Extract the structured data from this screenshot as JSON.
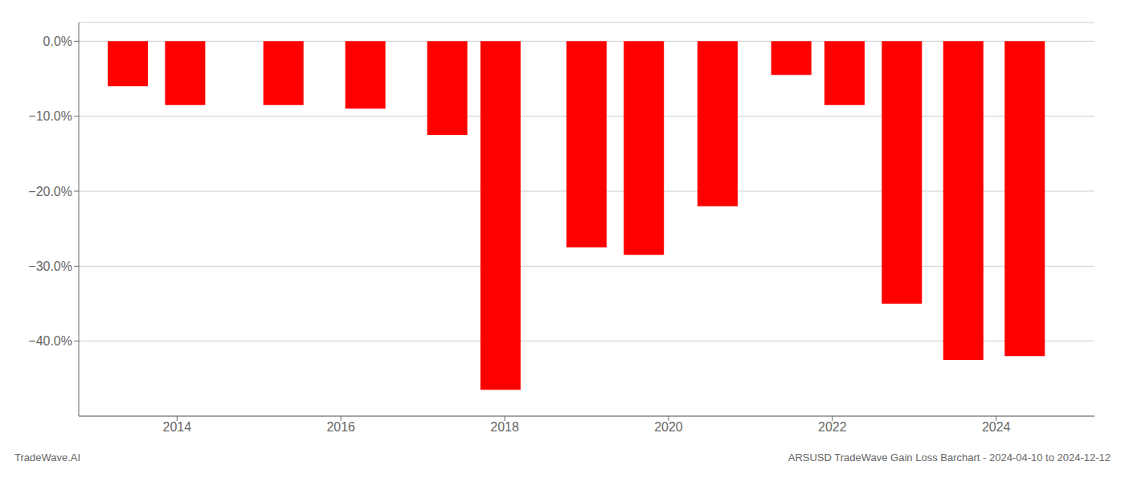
{
  "chart_data": {
    "type": "bar",
    "x": [
      2013.4,
      2014.1,
      2015.3,
      2016.3,
      2017.3,
      2017.95,
      2019.0,
      2019.7,
      2020.6,
      2021.5,
      2022.15,
      2022.85,
      2023.6,
      2024.35
    ],
    "values": [
      -6.0,
      -8.5,
      -8.5,
      -9.0,
      -12.5,
      -46.5,
      -27.5,
      -28.5,
      -22.0,
      -4.5,
      -8.5,
      -35.0,
      -42.5,
      -42.0
    ],
    "color": "#ff0000",
    "xlim": [
      2012.8,
      2025.2
    ],
    "xticks": [
      2014,
      2016,
      2018,
      2020,
      2022,
      2024
    ],
    "ylim": [
      -50,
      2.5
    ],
    "yticks": [
      {
        "value": 0.0,
        "label": "0.0%"
      },
      {
        "value": -10.0,
        "label": "−10.0%"
      },
      {
        "value": -20.0,
        "label": "−20.0%"
      },
      {
        "value": -30.0,
        "label": "−30.0%"
      },
      {
        "value": -40.0,
        "label": "−40.0%"
      }
    ],
    "grid": true,
    "annotations": [
      "TradeWave.AI",
      "ARSUSD TradeWave Gain Loss Barchart - 2024-04-10 to 2024-12-12"
    ]
  }
}
